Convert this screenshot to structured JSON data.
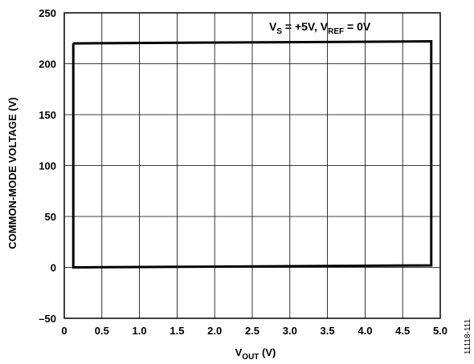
{
  "chart_data": {
    "type": "line",
    "xlim": [
      0,
      5.0
    ],
    "ylim": [
      -50,
      250
    ],
    "x_ticks": [
      0,
      0.5,
      1.0,
      1.5,
      2.0,
      2.5,
      3.0,
      3.5,
      4.0,
      4.5,
      5.0
    ],
    "x_tick_labels": [
      "0",
      "0.5",
      "1.0",
      "1.5",
      "2.0",
      "2.5",
      "3.0",
      "3.5",
      "4.0",
      "4.5",
      "5.0"
    ],
    "y_ticks": [
      -50,
      0,
      50,
      100,
      150,
      200,
      250
    ],
    "y_tick_labels": [
      "–50",
      "0",
      "50",
      "100",
      "150",
      "200",
      "250"
    ],
    "xlabel": {
      "main": "V",
      "sub": "OUT",
      "tail": " (V)"
    },
    "ylabel": "COMMON-MODE VOLTAGE (V)",
    "annotation": {
      "p1": "V",
      "s1": "S",
      "p2": " = +5V, V",
      "s2": "REF",
      "p3": " = 0V"
    },
    "grid": true,
    "legend": "none",
    "series": [
      {
        "closed": true,
        "x": [
          0.12,
          4.88,
          4.88,
          0.12,
          0.12
        ],
        "y": [
          220,
          222,
          2,
          0,
          220
        ]
      }
    ]
  },
  "figure_id": "11118-111"
}
